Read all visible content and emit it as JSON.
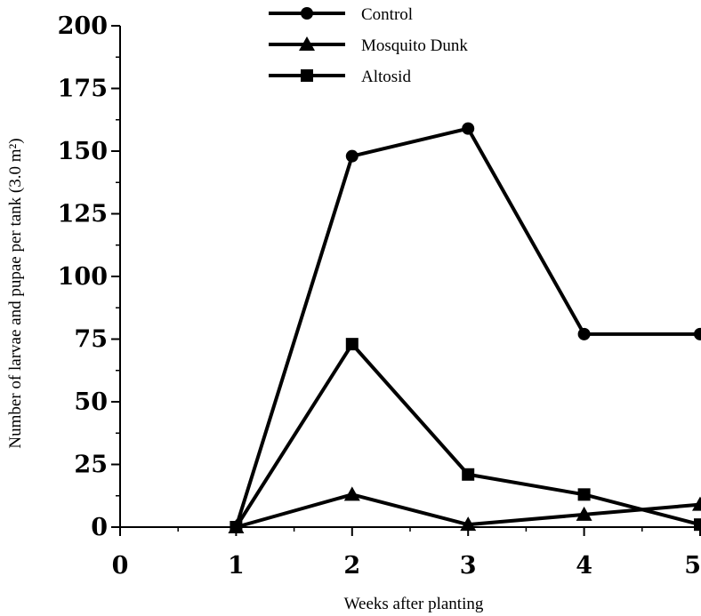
{
  "chart_data": {
    "type": "line",
    "title": "",
    "xlabel": "Weeks after planting",
    "ylabel": "Number of larvae and pupae per tank (3.0 m²)",
    "xlim": [
      0,
      5
    ],
    "ylim": [
      0,
      200
    ],
    "x_ticks": [
      "0",
      "1",
      "2",
      "3",
      "4",
      "5"
    ],
    "y_ticks": [
      "0",
      "25",
      "50",
      "75",
      "100",
      "125",
      "150",
      "175",
      "200"
    ],
    "grid": false,
    "legend_position": "top-center",
    "x": [
      1,
      2,
      3,
      4,
      5
    ],
    "series": [
      {
        "name": "Control",
        "marker": "circle",
        "color": "#000000",
        "values": [
          0,
          148,
          159,
          77,
          77
        ]
      },
      {
        "name": "Mosquito Dunk",
        "marker": "triangle",
        "color": "#000000",
        "values": [
          0,
          13,
          1,
          5,
          9
        ]
      },
      {
        "name": "Altosid",
        "marker": "square",
        "color": "#000000",
        "values": [
          0,
          73,
          21,
          13,
          1
        ]
      }
    ]
  }
}
